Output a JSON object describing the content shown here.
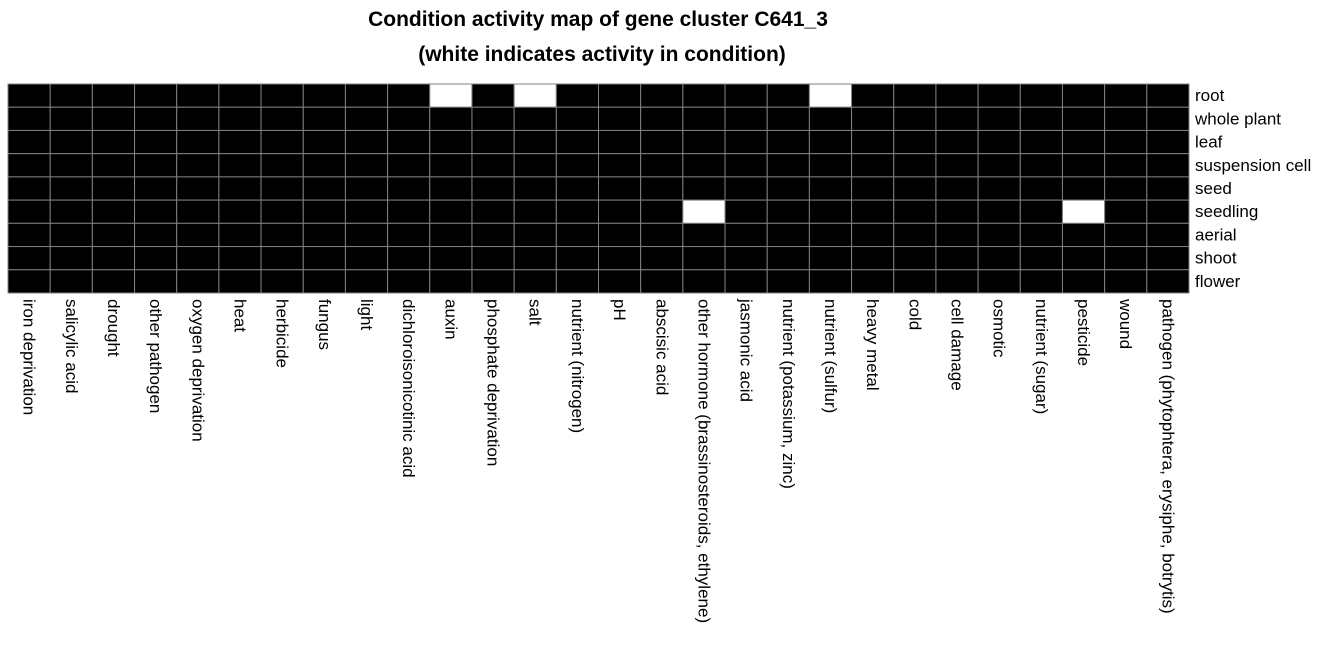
{
  "chart_data": {
    "type": "heatmap",
    "title": "Condition activity map of gene cluster C641_3",
    "subtitle": "(white indicates activity in condition)",
    "xlabel": "",
    "ylabel": "",
    "columns": [
      "iron deprivation",
      "salicylic acid",
      "drought",
      "other pathogen",
      "oxygen deprivation",
      "heat",
      "herbicide",
      "fungus",
      "light",
      "dichloroisonicotinic acid",
      "auxin",
      "phosphate deprivation",
      "salt",
      "nutrient (nitrogen)",
      "pH",
      "abscisic acid",
      "other hormone (brassinosteroids, ethylene)",
      "jasmonic acid",
      "nutrient (potassium, zinc)",
      "nutrient (sulfur)",
      "heavy metal",
      "cold",
      "cell damage",
      "osmotic",
      "nutrient (sugar)",
      "pesticide",
      "wound",
      "pathogen (phytophtera, erysiphe, botrytis)"
    ],
    "rows": [
      "root",
      "whole plant",
      "leaf",
      "suspension cell",
      "seed",
      "seedling",
      "aerial",
      "shoot",
      "flower"
    ],
    "values": [
      [
        0,
        0,
        0,
        0,
        0,
        0,
        0,
        0,
        0,
        0,
        1,
        0,
        1,
        0,
        0,
        0,
        0,
        0,
        0,
        1,
        0,
        0,
        0,
        0,
        0,
        0,
        0,
        0
      ],
      [
        0,
        0,
        0,
        0,
        0,
        0,
        0,
        0,
        0,
        0,
        0,
        0,
        0,
        0,
        0,
        0,
        0,
        0,
        0,
        0,
        0,
        0,
        0,
        0,
        0,
        0,
        0,
        0
      ],
      [
        0,
        0,
        0,
        0,
        0,
        0,
        0,
        0,
        0,
        0,
        0,
        0,
        0,
        0,
        0,
        0,
        0,
        0,
        0,
        0,
        0,
        0,
        0,
        0,
        0,
        0,
        0,
        0
      ],
      [
        0,
        0,
        0,
        0,
        0,
        0,
        0,
        0,
        0,
        0,
        0,
        0,
        0,
        0,
        0,
        0,
        0,
        0,
        0,
        0,
        0,
        0,
        0,
        0,
        0,
        0,
        0,
        0
      ],
      [
        0,
        0,
        0,
        0,
        0,
        0,
        0,
        0,
        0,
        0,
        0,
        0,
        0,
        0,
        0,
        0,
        0,
        0,
        0,
        0,
        0,
        0,
        0,
        0,
        0,
        0,
        0,
        0
      ],
      [
        0,
        0,
        0,
        0,
        0,
        0,
        0,
        0,
        0,
        0,
        0,
        0,
        0,
        0,
        0,
        0,
        1,
        0,
        0,
        0,
        0,
        0,
        0,
        0,
        0,
        1,
        0,
        0
      ],
      [
        0,
        0,
        0,
        0,
        0,
        0,
        0,
        0,
        0,
        0,
        0,
        0,
        0,
        0,
        0,
        0,
        0,
        0,
        0,
        0,
        0,
        0,
        0,
        0,
        0,
        0,
        0,
        0
      ],
      [
        0,
        0,
        0,
        0,
        0,
        0,
        0,
        0,
        0,
        0,
        0,
        0,
        0,
        0,
        0,
        0,
        0,
        0,
        0,
        0,
        0,
        0,
        0,
        0,
        0,
        0,
        0,
        0
      ],
      [
        0,
        0,
        0,
        0,
        0,
        0,
        0,
        0,
        0,
        0,
        0,
        0,
        0,
        0,
        0,
        0,
        0,
        0,
        0,
        0,
        0,
        0,
        0,
        0,
        0,
        0,
        0,
        0
      ]
    ],
    "value_colors": {
      "active": "#ffffff",
      "inactive": "#000000"
    },
    "grid_color": "#808080",
    "legend": "none"
  }
}
